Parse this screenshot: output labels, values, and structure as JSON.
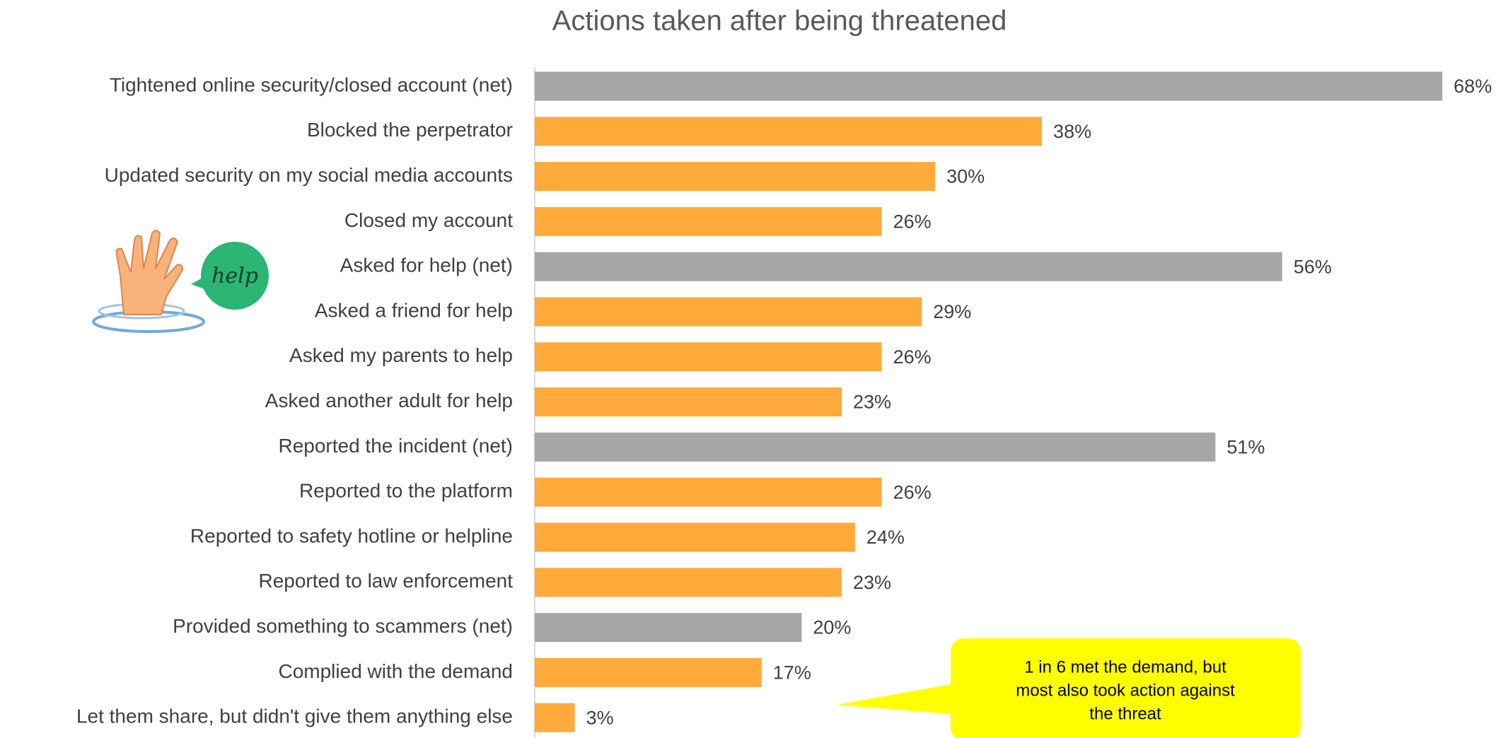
{
  "chart_data": {
    "type": "bar",
    "orientation": "horizontal",
    "title": "Actions taken after being threatened",
    "categories": [
      "Tightened online security/closed account (net)",
      "Blocked the perpetrator",
      "Updated security on my social media accounts",
      "Closed my account",
      "Asked for help (net)",
      "Asked a friend for help",
      "Asked my parents to help",
      "Asked another adult for help",
      "Reported the incident (net)",
      "Reported to the platform",
      "Reported to safety hotline or helpline",
      "Reported to law enforcement",
      "Provided something to scammers (net)",
      "Complied with the demand",
      "Let them share, but didn't give them anything else"
    ],
    "values": [
      68,
      38,
      30,
      26,
      56,
      29,
      26,
      23,
      51,
      26,
      24,
      23,
      20,
      17,
      3
    ],
    "value_labels": [
      "68%",
      "38%",
      "30%",
      "26%",
      "56%",
      "29%",
      "26%",
      "23%",
      "51%",
      "26%",
      "24%",
      "23%",
      "20%",
      "17%",
      "3%"
    ],
    "colors": [
      "#a6a6a6",
      "#ffaa3b",
      "#ffaa3b",
      "#ffaa3b",
      "#a6a6a6",
      "#ffaa3b",
      "#ffaa3b",
      "#ffaa3b",
      "#a6a6a6",
      "#ffaa3b",
      "#ffaa3b",
      "#ffaa3b",
      "#a6a6a6",
      "#ffaa3b",
      "#ffaa3b"
    ],
    "annotation": [
      "1 in 6 met the demand, but",
      "most also took action against",
      "the threat"
    ],
    "icon_label": "help"
  }
}
